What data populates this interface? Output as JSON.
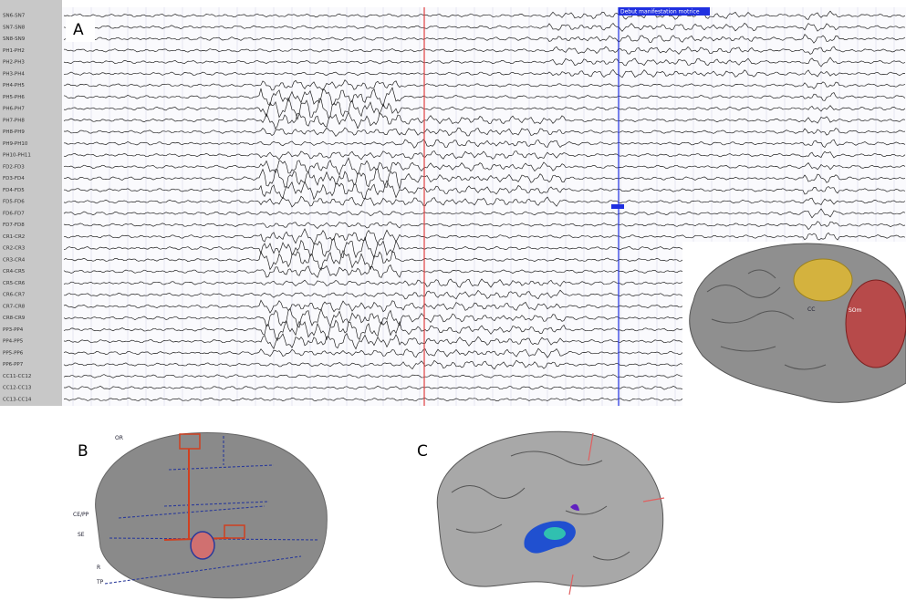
{
  "panels": {
    "a": {
      "label": "A",
      "marker_label": "Debut manifestation motrice",
      "channels": [
        "SN6-SN7",
        "SN7-SN8",
        "SN8-SN9",
        "PH1-PH2",
        "PH2-PH3",
        "PH3-PH4",
        "PH4-PH5",
        "PH5-PH6",
        "PH6-PH7",
        "PH7-PH8",
        "PH8-PH9",
        "PH9-PH10",
        "PH10-PH11",
        "FD2-FD3",
        "FD3-FD4",
        "FD4-FD5",
        "FD5-FD6",
        "FD6-FD7",
        "FD7-FD8",
        "CR1-CR2",
        "CR2-CR3",
        "CR3-CR4",
        "CR4-CR5",
        "CR5-CR6",
        "CR6-CR7",
        "CR7-CR8",
        "CR8-CR9",
        "PP3-PP4",
        "PP4-PP5",
        "PP5-PP6",
        "PP6-PP7",
        "CC11-CC12",
        "CC12-CC13",
        "CC13-CC14"
      ],
      "inset_labels": [
        "CC",
        "SOm"
      ]
    },
    "b": {
      "label": "B",
      "electrode_labels": [
        "OR",
        "CE/PP",
        "SE",
        "R",
        "TP"
      ]
    },
    "c": {
      "label": "C"
    }
  }
}
